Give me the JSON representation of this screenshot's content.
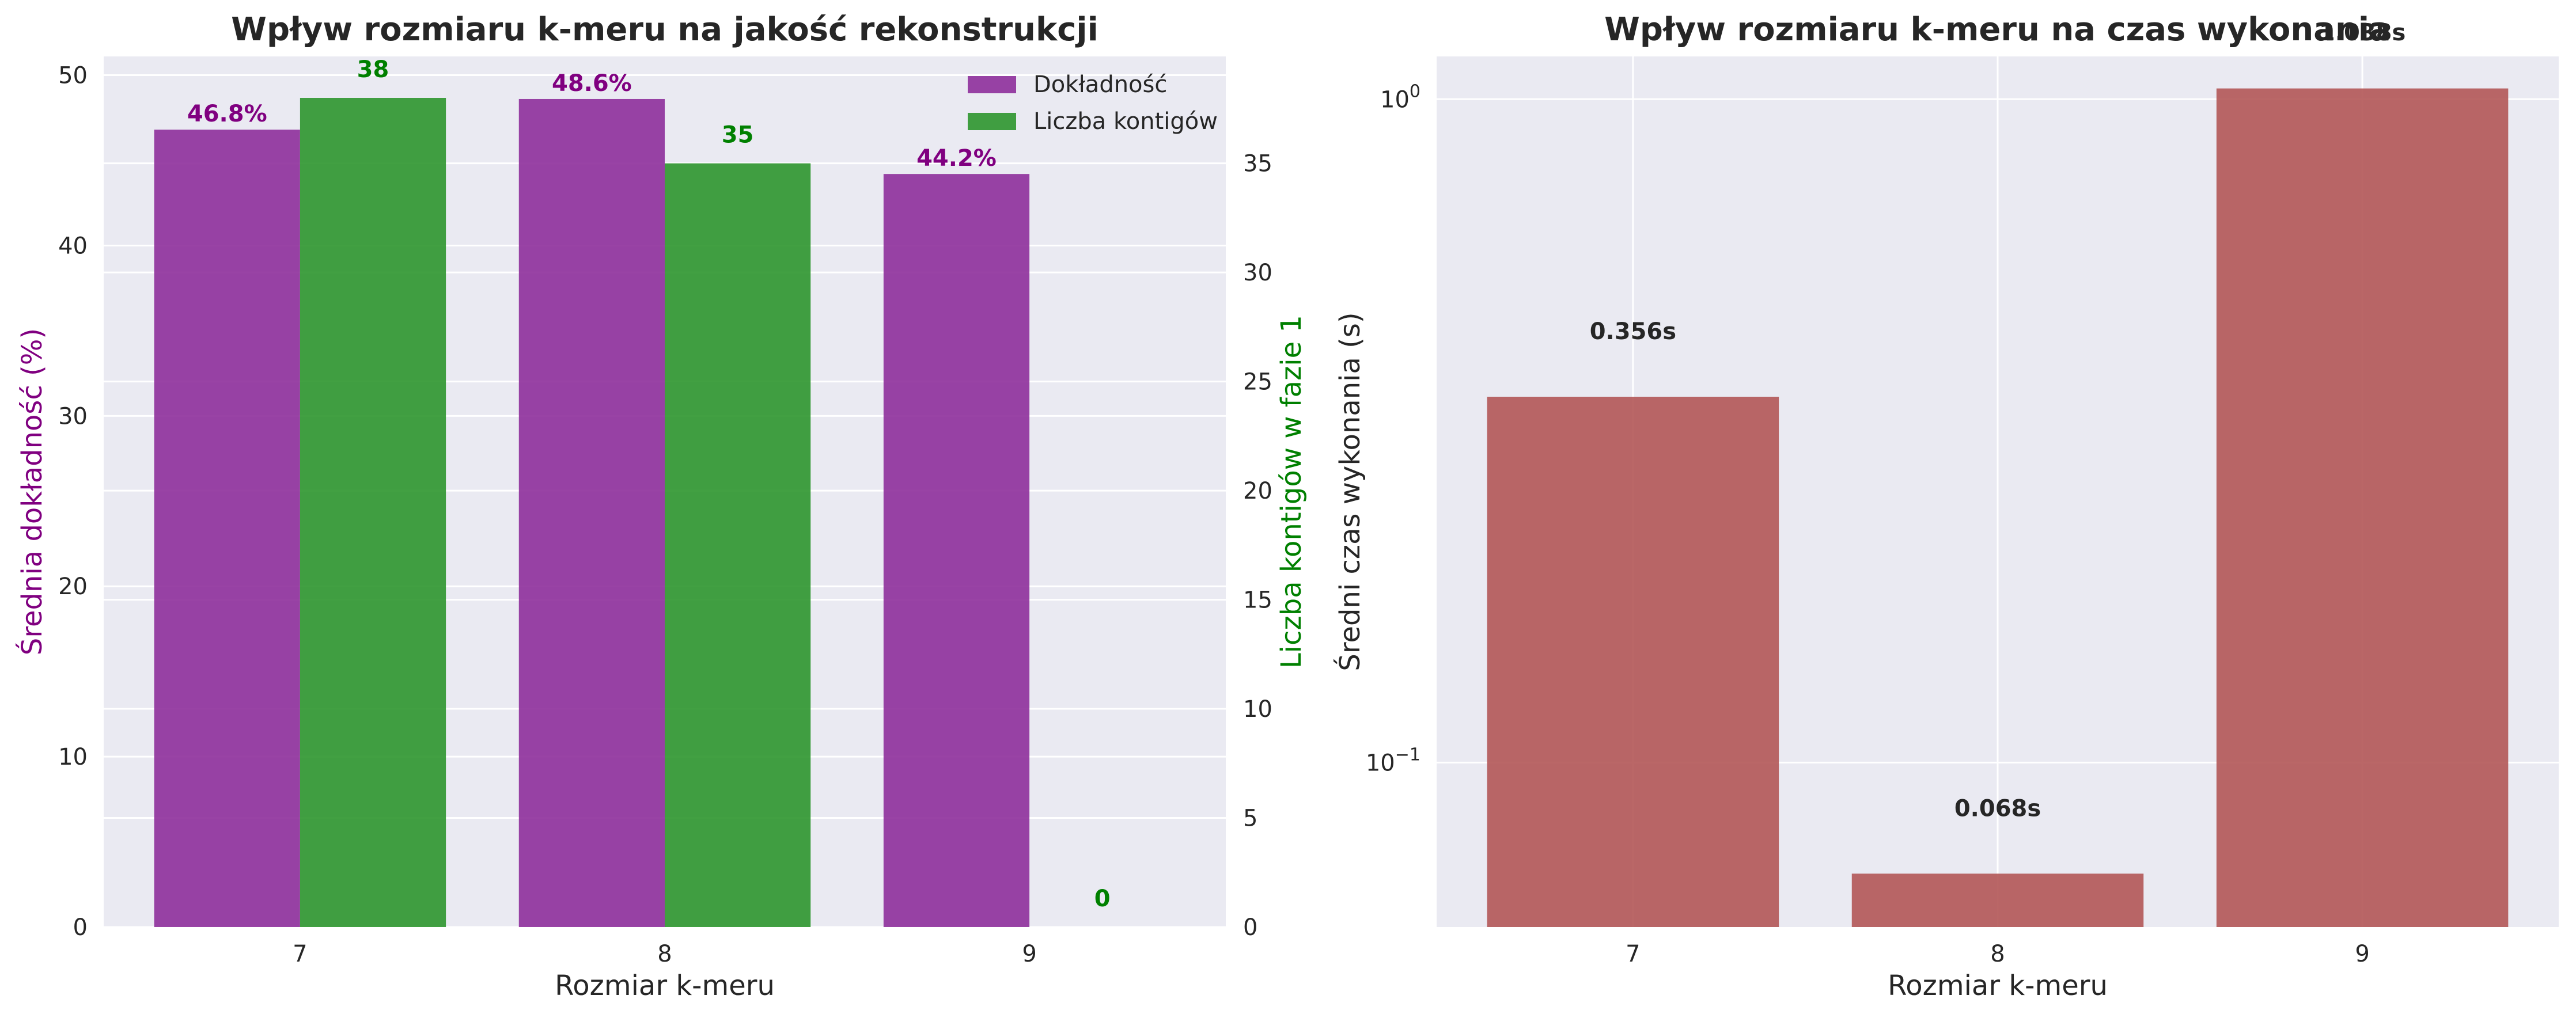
{
  "chart_data": [
    {
      "type": "bar",
      "title": "Wpływ rozmiaru k-meru na jakość rekonstrukcji",
      "xlabel": "Rozmiar k-meru",
      "ylabel": "Średnia dokładność (%)",
      "y2label": "Liczba kontigów w fazie 1",
      "categories": [
        "7",
        "8",
        "9"
      ],
      "ylim": [
        0,
        51.1
      ],
      "y2lim": [
        0,
        39.9
      ],
      "yticks": [
        "0",
        "10",
        "20",
        "30",
        "40",
        "50"
      ],
      "y2ticks": [
        "0",
        "5",
        "10",
        "15",
        "20",
        "25",
        "30",
        "35"
      ],
      "grid": true,
      "legend_position": "top-right",
      "series": [
        {
          "name": "Dokładność",
          "axis": "left",
          "color": "#8e2f9b",
          "values": [
            46.8,
            48.6,
            44.2
          ],
          "labels": [
            "46.8%",
            "48.6%",
            "44.2%"
          ]
        },
        {
          "name": "Liczba kontigów",
          "axis": "right",
          "color": "#2e962e",
          "values": [
            38,
            35,
            0
          ],
          "labels": [
            "38",
            "35",
            "0"
          ]
        }
      ]
    },
    {
      "type": "bar",
      "title": "Wpływ rozmiaru k-meru na czas wykonania",
      "xlabel": "Rozmiar k-meru",
      "ylabel": "Średni czas wykonania (s)",
      "categories": [
        "7",
        "8",
        "9"
      ],
      "yscale": "log",
      "ylim": [
        0.0565,
        1.16
      ],
      "yticks": [
        {
          "value": 1,
          "base": "10",
          "exp": "0"
        },
        {
          "value": 0.1,
          "base": "10",
          "exp": "−1"
        }
      ],
      "grid": true,
      "color": "#b35656",
      "values": [
        0.356,
        0.068,
        1.038
      ],
      "labels": [
        "0.356s",
        "0.068s",
        "1.038s"
      ]
    }
  ]
}
